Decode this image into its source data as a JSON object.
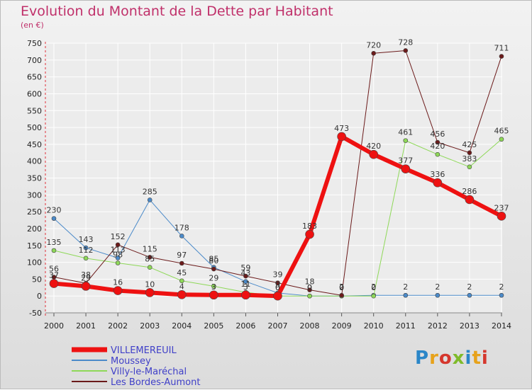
{
  "header": {
    "title": "Evolution du Montant de la Dette par Habitant",
    "unit": "(en €)"
  },
  "logo": {
    "letters": [
      "P",
      "r",
      "o",
      "x",
      "i",
      "t",
      "i"
    ],
    "colors": [
      "#2a86c8",
      "#e7a21b",
      "#d5372d",
      "#7fbb2a",
      "#2a86c8",
      "#e7a21b",
      "#d5372d"
    ]
  },
  "chart_data": {
    "type": "line",
    "x": [
      "2000",
      "2001",
      "2002",
      "2003",
      "2004",
      "2005",
      "2006",
      "2007",
      "2008",
      "2009",
      "2010",
      "2011",
      "2012",
      "2013",
      "2014"
    ],
    "ylim": [
      -50,
      750
    ],
    "yticks": [
      -50,
      0,
      50,
      100,
      150,
      200,
      250,
      300,
      350,
      400,
      450,
      500,
      550,
      600,
      650,
      700,
      750
    ],
    "grid": true,
    "legend_position": "bottom-left",
    "series": [
      {
        "name": "VILLEMEREUIL",
        "color": "#ee1111",
        "values": [
          37,
          29,
          16,
          10,
          4,
          3,
          3,
          0,
          183,
          473,
          420,
          377,
          336,
          286,
          237
        ]
      },
      {
        "name": "Moussey",
        "color": "#4b8ac9",
        "values": [
          230,
          143,
          113,
          285,
          178,
          85,
          43,
          9,
          0,
          0,
          2,
          2,
          2,
          2,
          2
        ]
      },
      {
        "name": "Villy-le-Maréchal",
        "color": "#8ed858",
        "values": [
          135,
          112,
          98,
          85,
          45,
          29,
          11,
          0,
          0,
          0,
          0,
          461,
          420,
          383,
          465
        ]
      },
      {
        "name": "Les Bordes-Aumont",
        "color": "#6b1a1a",
        "values": [
          56,
          38,
          152,
          115,
          97,
          80,
          59,
          39,
          18,
          2,
          720,
          728,
          456,
          425,
          711
        ]
      }
    ]
  }
}
